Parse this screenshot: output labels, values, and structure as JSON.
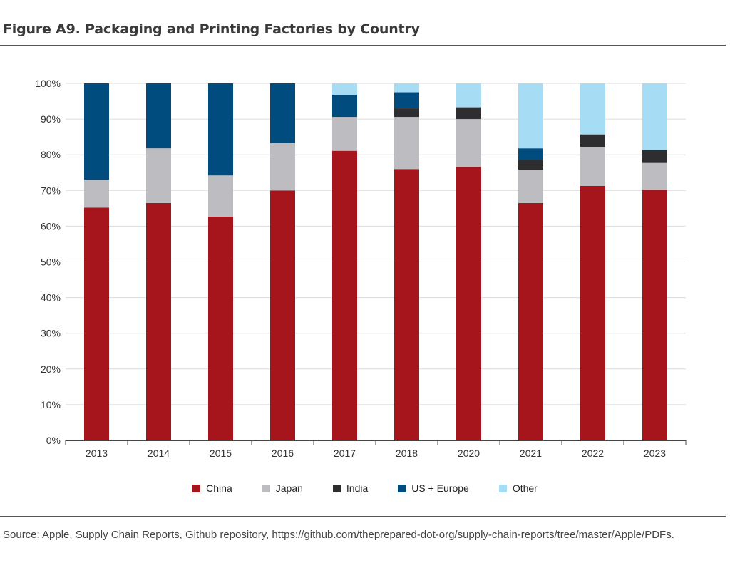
{
  "title": "Figure A9. Packaging and Printing Factories by Country",
  "source": "Source: Apple, Supply Chain Reports, Github repository, https://github.com/theprepared-dot-org/supply-chain-reports/tree/master/Apple/PDFs.",
  "chart_data": {
    "type": "bar",
    "stacked": true,
    "categories": [
      "2013",
      "2014",
      "2015",
      "2016",
      "2017",
      "2018",
      "2020",
      "2021",
      "2022",
      "2023"
    ],
    "series": [
      {
        "name": "China",
        "color": "#a6151c",
        "values": [
          65.2,
          66.5,
          62.7,
          70.0,
          81.1,
          76.0,
          76.6,
          66.5,
          71.3,
          70.2
        ]
      },
      {
        "name": "Japan",
        "color": "#bdbcc0",
        "values": [
          7.8,
          15.3,
          11.5,
          13.3,
          9.5,
          14.6,
          13.4,
          9.3,
          10.9,
          7.5
        ]
      },
      {
        "name": "India",
        "color": "#2e2e30",
        "values": [
          0,
          0,
          0,
          0,
          0,
          2.4,
          3.3,
          2.8,
          3.5,
          3.6
        ]
      },
      {
        "name": "US + Europe",
        "color": "#004c7f",
        "values": [
          27.0,
          18.2,
          25.8,
          16.7,
          6.2,
          4.5,
          0,
          3.2,
          0,
          0
        ]
      },
      {
        "name": "Other",
        "color": "#a6dcf4",
        "values": [
          0,
          0,
          0,
          0,
          3.2,
          2.5,
          6.7,
          18.2,
          14.3,
          18.7
        ]
      }
    ],
    "yticks": [
      "0%",
      "10%",
      "20%",
      "30%",
      "40%",
      "50%",
      "60%",
      "70%",
      "80%",
      "90%",
      "100%"
    ],
    "ylim": [
      0,
      100
    ],
    "grid": true,
    "legend_position": "bottom"
  }
}
